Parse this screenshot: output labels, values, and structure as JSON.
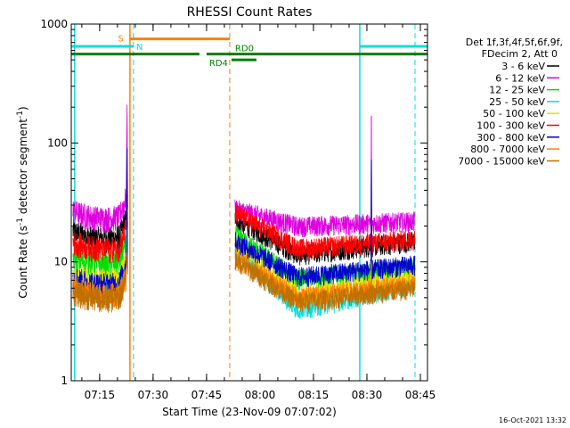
{
  "chart_data": {
    "type": "line",
    "title": "RHESSI Count Rates",
    "xlabel": "Start Time (23-Nov-09 07:07:02)",
    "ylabel_main": "Count Rate (s",
    "ylabel_sup1": "-1",
    "ylabel_mid": " detector segment",
    "ylabel_sup2": "-1",
    "ylabel_end": ")",
    "yscale": "log",
    "xlim": [
      "07:07:02",
      "08:47:00"
    ],
    "ylim": [
      1,
      1000
    ],
    "xticks": [
      "07:15",
      "07:30",
      "07:45",
      "08:00",
      "08:15",
      "08:30",
      "08:45"
    ],
    "yticks": [
      "1",
      "10",
      "100",
      "1000"
    ],
    "legend_header": [
      "Det 1f,3f,4f,5f,6f,9f,",
      "FDecim 2, Att 0"
    ],
    "legend_position": "right",
    "series": [
      {
        "name": "3 - 6 keV",
        "color": "#000000",
        "pre": 13.5,
        "a": 23,
        "m": 11.5,
        "e": 15,
        "peak": 90
      },
      {
        "name": "6 - 12 keV",
        "color": "#e000e0",
        "pre": 20,
        "a": 28,
        "m": 20,
        "e": 22,
        "peak": 210
      },
      {
        "name": "12 - 25 keV",
        "color": "#00e000",
        "pre": 8.2,
        "a": 17,
        "m": 7.2,
        "e": 9,
        "peak": 80
      },
      {
        "name": "25 - 50 keV",
        "color": "#00e0e0",
        "pre": 5.2,
        "a": 13,
        "m": 4.0,
        "e": 6.5,
        "peak": 15
      },
      {
        "name": "50 - 100 keV",
        "color": "#e0e000",
        "pre": 6.0,
        "a": 14,
        "m": 5.3,
        "e": 7.5,
        "peak": 14
      },
      {
        "name": "100 - 300 keV",
        "color": "#ff0000",
        "pre": 11,
        "a": 26,
        "m": 13,
        "e": 15.5,
        "peak": 45
      },
      {
        "name": "300 - 800 keV",
        "color": "#0000d0",
        "pre": 5.5,
        "a": 15,
        "m": 7.5,
        "e": 9.5,
        "peak": 90
      },
      {
        "name": "800 - 7000 keV",
        "color": "#ff8000",
        "pre": 4.5,
        "a": 11,
        "m": 5.0,
        "e": 6.5,
        "peak": 12
      },
      {
        "name": "7000 - 15000 keV",
        "color": "#c07000",
        "pre": 4.2,
        "a": 10.5,
        "m": 4.6,
        "e": 6.0,
        "peak": 11
      }
    ],
    "markers": [
      {
        "label": "S",
        "color": "#ff8000",
        "y": 750
      },
      {
        "label": "N",
        "color": "#00e0e0",
        "y": 650
      },
      {
        "label": "RD0",
        "color": "#008000",
        "y": 560
      },
      {
        "label": "RD4",
        "color": "#008000",
        "y": 500
      }
    ],
    "timestamp": "16-Oct-2021 13:32"
  }
}
